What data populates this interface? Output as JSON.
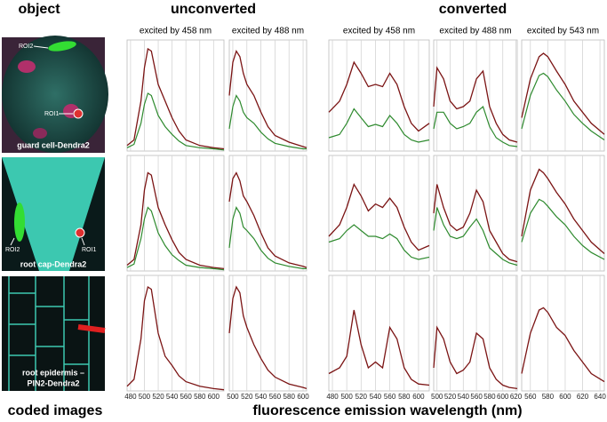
{
  "headers": {
    "object": "object",
    "unconverted": "unconverted",
    "converted": "converted",
    "columns": [
      "excited by 458 nm",
      "excited by 488 nm",
      "excited by 458 nm",
      "excited by 488 nm",
      "excited by 543 nm"
    ],
    "left_footer": "coded images",
    "x_axis_label": "fluorescence emission wavelength (nm)"
  },
  "images": [
    {
      "label": [
        "guard cell-Dendra2"
      ],
      "roi2": "ROI2",
      "roi1": "ROI1"
    },
    {
      "label": [
        "root cap-Dendra2"
      ],
      "roi2": "ROI2",
      "roi1": "ROI1"
    },
    {
      "label": [
        "root epidermis –",
        "PIN2-Dendra2"
      ]
    }
  ],
  "chart_data": [
    {
      "type": "line",
      "x": [
        475,
        485,
        495,
        500,
        505,
        510,
        520,
        530,
        540,
        550,
        560,
        580,
        600,
        615
      ],
      "xlim": [
        475,
        615
      ],
      "xticks": [
        480,
        500,
        520,
        540,
        560,
        580,
        600
      ],
      "xtick_labels": false,
      "ylim": [
        0,
        100
      ],
      "series": [
        {
          "name": "ROI1",
          "color": "#7b1414",
          "values": [
            5,
            10,
            45,
            75,
            92,
            90,
            60,
            45,
            30,
            18,
            10,
            5,
            3,
            2
          ]
        },
        {
          "name": "ROI2",
          "color": "#2e8a2e",
          "values": [
            3,
            6,
            25,
            42,
            52,
            50,
            32,
            22,
            15,
            9,
            5,
            3,
            2,
            1
          ]
        }
      ]
    },
    {
      "type": "line",
      "x": [
        495,
        500,
        505,
        510,
        515,
        520,
        530,
        540,
        550,
        560,
        580,
        600,
        605
      ],
      "xlim": [
        495,
        605
      ],
      "xticks": [
        500,
        520,
        540,
        560,
        580,
        600
      ],
      "xtick_labels": false,
      "ylim": [
        0,
        100
      ],
      "series": [
        {
          "name": "ROI1",
          "color": "#7b1414",
          "values": [
            50,
            80,
            90,
            85,
            70,
            60,
            50,
            35,
            22,
            14,
            8,
            4,
            3
          ]
        },
        {
          "name": "ROI2",
          "color": "#2e8a2e",
          "values": [
            20,
            40,
            50,
            45,
            35,
            30,
            25,
            17,
            11,
            7,
            4,
            2,
            2
          ]
        }
      ]
    },
    {
      "type": "line",
      "x": [
        475,
        490,
        500,
        510,
        520,
        530,
        540,
        550,
        560,
        570,
        580,
        590,
        600,
        615
      ],
      "xlim": [
        475,
        615
      ],
      "xticks": [
        480,
        500,
        520,
        540,
        560,
        580,
        600
      ],
      "xtick_labels": false,
      "ylim": [
        0,
        100
      ],
      "series": [
        {
          "name": "ROI1",
          "color": "#7b1414",
          "values": [
            35,
            45,
            60,
            80,
            70,
            58,
            60,
            58,
            70,
            60,
            40,
            25,
            18,
            25
          ]
        },
        {
          "name": "ROI2",
          "color": "#2e8a2e",
          "values": [
            12,
            15,
            25,
            38,
            30,
            22,
            24,
            22,
            32,
            25,
            15,
            10,
            8,
            10
          ]
        }
      ]
    },
    {
      "type": "line",
      "x": [
        495,
        500,
        510,
        520,
        530,
        540,
        550,
        560,
        570,
        580,
        590,
        600,
        610,
        622
      ],
      "xlim": [
        495,
        622
      ],
      "xticks": [
        500,
        520,
        540,
        560,
        580,
        600,
        620
      ],
      "xtick_labels": false,
      "ylim": [
        0,
        100
      ],
      "series": [
        {
          "name": "ROI1",
          "color": "#7b1414",
          "values": [
            40,
            75,
            65,
            45,
            38,
            40,
            45,
            65,
            72,
            40,
            25,
            15,
            10,
            8
          ]
        },
        {
          "name": "ROI2",
          "color": "#2e8a2e",
          "values": [
            20,
            35,
            35,
            25,
            20,
            22,
            25,
            35,
            40,
            22,
            12,
            8,
            5,
            4
          ]
        }
      ]
    },
    {
      "type": "line",
      "x": [
        550,
        560,
        570,
        575,
        580,
        590,
        600,
        610,
        620,
        630,
        645
      ],
      "xlim": [
        550,
        645
      ],
      "xticks": [
        560,
        580,
        600,
        620,
        640
      ],
      "xtick_labels": false,
      "ylim": [
        0,
        100
      ],
      "series": [
        {
          "name": "ROI1",
          "color": "#7b1414",
          "values": [
            30,
            65,
            85,
            88,
            85,
            72,
            60,
            45,
            35,
            25,
            15
          ]
        },
        {
          "name": "ROI2",
          "color": "#2e8a2e",
          "values": [
            20,
            50,
            68,
            70,
            67,
            55,
            45,
            33,
            25,
            18,
            10
          ]
        }
      ]
    },
    {
      "type": "line",
      "x": [
        475,
        485,
        495,
        500,
        505,
        510,
        520,
        530,
        540,
        550,
        560,
        580,
        600,
        615
      ],
      "xlim": [
        475,
        615
      ],
      "xticks": [
        480,
        500,
        520,
        540,
        560,
        580,
        600
      ],
      "xtick_labels": false,
      "ylim": [
        0,
        100
      ],
      "series": [
        {
          "name": "ROI1",
          "color": "#7b1414",
          "values": [
            5,
            10,
            40,
            70,
            85,
            83,
            55,
            40,
            27,
            16,
            10,
            5,
            3,
            2
          ]
        },
        {
          "name": "ROI2",
          "color": "#2e8a2e",
          "values": [
            3,
            6,
            28,
            45,
            55,
            52,
            33,
            22,
            14,
            9,
            5,
            3,
            2,
            1
          ]
        }
      ]
    },
    {
      "type": "line",
      "x": [
        495,
        500,
        505,
        510,
        515,
        520,
        530,
        540,
        550,
        560,
        580,
        600,
        605
      ],
      "xlim": [
        495,
        605
      ],
      "xticks": [
        500,
        520,
        540,
        560,
        580,
        600
      ],
      "xtick_labels": false,
      "ylim": [
        0,
        100
      ],
      "series": [
        {
          "name": "ROI1",
          "color": "#7b1414",
          "values": [
            60,
            80,
            85,
            78,
            65,
            60,
            48,
            33,
            20,
            13,
            7,
            4,
            3
          ]
        },
        {
          "name": "ROI2",
          "color": "#2e8a2e",
          "values": [
            20,
            45,
            55,
            50,
            38,
            35,
            28,
            18,
            11,
            7,
            4,
            2,
            2
          ]
        }
      ]
    },
    {
      "type": "line",
      "x": [
        475,
        490,
        500,
        510,
        520,
        530,
        540,
        550,
        560,
        570,
        580,
        590,
        600,
        615
      ],
      "xlim": [
        475,
        615
      ],
      "xticks": [
        480,
        500,
        520,
        540,
        560,
        580,
        600
      ],
      "xtick_labels": false,
      "ylim": [
        0,
        100
      ],
      "series": [
        {
          "name": "ROI1",
          "color": "#7b1414",
          "values": [
            30,
            40,
            55,
            75,
            65,
            52,
            58,
            55,
            63,
            55,
            38,
            25,
            18,
            22
          ]
        },
        {
          "name": "ROI2",
          "color": "#2e8a2e",
          "values": [
            25,
            28,
            35,
            40,
            35,
            30,
            30,
            28,
            32,
            28,
            18,
            12,
            10,
            12
          ]
        }
      ]
    },
    {
      "type": "line",
      "x": [
        495,
        500,
        510,
        520,
        530,
        540,
        550,
        560,
        570,
        580,
        590,
        600,
        610,
        622
      ],
      "xlim": [
        495,
        622
      ],
      "xticks": [
        500,
        520,
        540,
        560,
        580,
        600,
        620
      ],
      "xtick_labels": false,
      "ylim": [
        0,
        100
      ],
      "series": [
        {
          "name": "ROI1",
          "color": "#7b1414",
          "values": [
            50,
            75,
            55,
            40,
            35,
            38,
            50,
            70,
            60,
            35,
            25,
            15,
            10,
            8
          ]
        },
        {
          "name": "ROI2",
          "color": "#2e8a2e",
          "values": [
            35,
            55,
            40,
            30,
            28,
            30,
            38,
            45,
            35,
            20,
            15,
            10,
            7,
            5
          ]
        }
      ]
    },
    {
      "type": "line",
      "x": [
        550,
        560,
        570,
        575,
        580,
        590,
        600,
        610,
        620,
        630,
        645
      ],
      "xlim": [
        550,
        645
      ],
      "xticks": [
        560,
        580,
        600,
        620,
        640
      ],
      "xtick_labels": false,
      "ylim": [
        0,
        100
      ],
      "series": [
        {
          "name": "ROI1",
          "color": "#7b1414",
          "values": [
            30,
            70,
            88,
            85,
            80,
            68,
            58,
            45,
            35,
            25,
            15
          ]
        },
        {
          "name": "ROI2",
          "color": "#2e8a2e",
          "values": [
            25,
            50,
            62,
            60,
            56,
            47,
            40,
            30,
            22,
            16,
            10
          ]
        }
      ]
    },
    {
      "type": "line",
      "x": [
        475,
        485,
        495,
        500,
        505,
        510,
        520,
        530,
        540,
        550,
        560,
        580,
        600,
        615
      ],
      "xlim": [
        475,
        615
      ],
      "xticks": [
        480,
        500,
        520,
        540,
        560,
        580,
        600
      ],
      "xtick_labels": true,
      "ylim": [
        0,
        100
      ],
      "series": [
        {
          "name": "ROI1",
          "color": "#7b1414",
          "values": [
            4,
            10,
            45,
            78,
            90,
            88,
            50,
            30,
            22,
            13,
            8,
            4,
            2,
            1
          ]
        }
      ]
    },
    {
      "type": "line",
      "x": [
        495,
        500,
        505,
        510,
        515,
        520,
        530,
        540,
        550,
        560,
        580,
        600,
        605
      ],
      "xlim": [
        495,
        605
      ],
      "xticks": [
        500,
        520,
        540,
        560,
        580,
        600
      ],
      "xtick_labels": true,
      "ylim": [
        0,
        100
      ],
      "series": [
        {
          "name": "ROI1",
          "color": "#7b1414",
          "values": [
            50,
            80,
            90,
            85,
            65,
            55,
            40,
            28,
            18,
            12,
            6,
            3,
            2
          ]
        }
      ]
    },
    {
      "type": "line",
      "x": [
        475,
        490,
        500,
        510,
        520,
        530,
        540,
        550,
        560,
        570,
        580,
        590,
        600,
        615
      ],
      "xlim": [
        475,
        615
      ],
      "xticks": [
        480,
        500,
        520,
        540,
        560,
        580,
        600
      ],
      "xtick_labels": true,
      "ylim": [
        0,
        100
      ],
      "series": [
        {
          "name": "ROI1",
          "color": "#7b1414",
          "values": [
            15,
            20,
            30,
            70,
            40,
            20,
            25,
            20,
            55,
            45,
            20,
            10,
            6,
            5
          ]
        }
      ]
    },
    {
      "type": "line",
      "x": [
        495,
        500,
        510,
        520,
        530,
        540,
        550,
        560,
        570,
        580,
        590,
        600,
        610,
        622
      ],
      "xlim": [
        495,
        622
      ],
      "xticks": [
        500,
        520,
        540,
        560,
        580,
        600,
        620
      ],
      "xtick_labels": true,
      "ylim": [
        0,
        100
      ],
      "series": [
        {
          "name": "ROI1",
          "color": "#7b1414",
          "values": [
            20,
            55,
            45,
            25,
            15,
            18,
            25,
            50,
            45,
            20,
            10,
            5,
            3,
            2
          ]
        }
      ]
    },
    {
      "type": "line",
      "x": [
        550,
        560,
        570,
        575,
        580,
        590,
        600,
        610,
        620,
        630,
        645
      ],
      "xlim": [
        550,
        645
      ],
      "xticks": [
        560,
        580,
        600,
        620,
        640
      ],
      "xtick_labels": true,
      "ylim": [
        0,
        100
      ],
      "series": [
        {
          "name": "ROI1",
          "color": "#7b1414",
          "values": [
            15,
            50,
            70,
            72,
            68,
            55,
            48,
            35,
            25,
            15,
            8
          ]
        }
      ]
    }
  ]
}
